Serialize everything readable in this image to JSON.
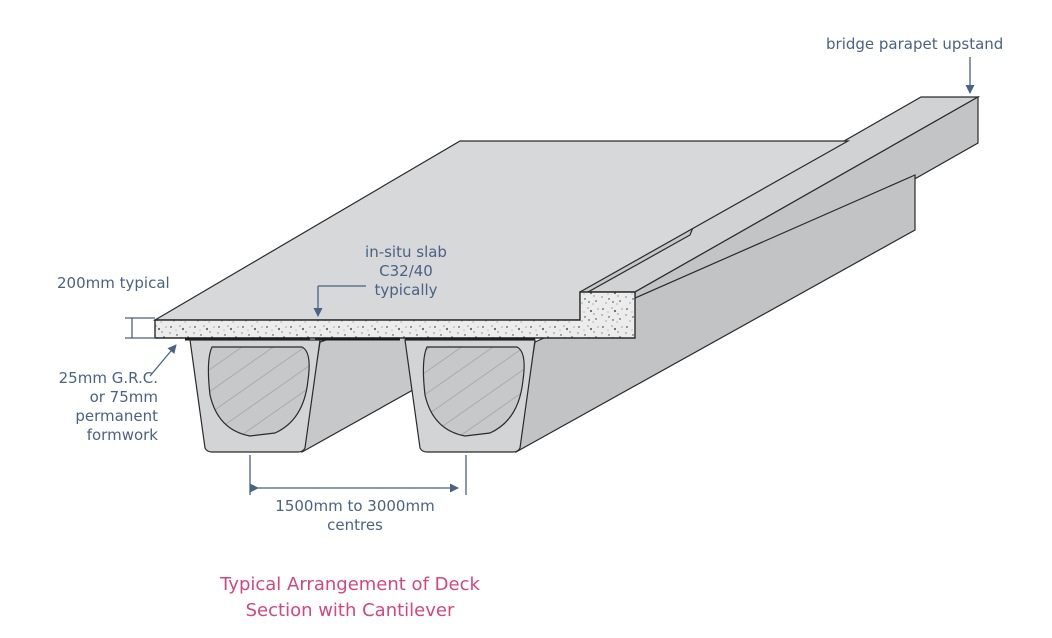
{
  "labels": {
    "parapet": "bridge parapet upstand",
    "slab_line1": "in-situ slab",
    "slab_line2": "C32/40",
    "slab_line3": "typically",
    "thickness": "200mm typical",
    "formwork_line1": "25mm G.R.C.",
    "formwork_line2": "or 75mm",
    "formwork_line3": "permanent",
    "formwork_line4": "formwork",
    "spacing_line1": "1500mm to 3000mm",
    "spacing_line2": "centres"
  },
  "caption": {
    "line1": "Typical Arrangement of Deck",
    "line2": "Section with Cantilever"
  },
  "colors": {
    "label": "#4a6285",
    "caption": "#d6457e",
    "concrete_top": "#d3d5d7",
    "concrete_side": "#c4c6c8",
    "outline": "#2a2a2a"
  }
}
